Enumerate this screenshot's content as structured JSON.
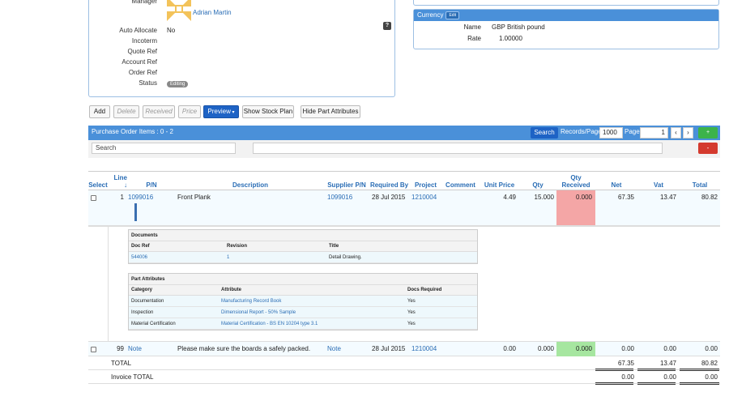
{
  "header": {
    "manager_label": "Manager",
    "manager_name": "Adrian Martin",
    "fields": [
      {
        "label": "Auto Allocate",
        "value": "No"
      },
      {
        "label": "Incoterm",
        "value": ""
      },
      {
        "label": "Quote Ref",
        "value": ""
      },
      {
        "label": "Account Ref",
        "value": ""
      },
      {
        "label": "Order Ref",
        "value": ""
      }
    ],
    "status_label": "Status",
    "status_value": "Editing",
    "help_icon": "?"
  },
  "currency": {
    "title": "Currency",
    "edit_label": "Edit",
    "name_label": "Name",
    "name_value": "GBP British pound",
    "rate_label": "Rate",
    "rate_value": "1.00000"
  },
  "toolbar": {
    "add": "Add",
    "delete": "Delete",
    "received": "Received",
    "price": "Price",
    "preview": "Preview",
    "show_stock_plan": "Show Stock Plan",
    "hide_part_attributes": "Hide Part Attributes"
  },
  "grid": {
    "title": "Purchase Order Items : 0 - 2",
    "search_button": "Search",
    "records_per_page_label": "Records/Page",
    "records_per_page": "1000",
    "page_label": "Page",
    "page": "1",
    "prev": "‹",
    "next": "›",
    "add_icon": "+",
    "delete_icon": "-",
    "search_placeholder": "Search"
  },
  "columns": {
    "select": "Select",
    "line": "Line",
    "line_sort": "↓",
    "pn": "P/N",
    "description": "Description",
    "supplier_pn": "Supplier P/N",
    "required_by": "Required By",
    "project": "Project",
    "comment": "Comment",
    "unit_price": "Unit Price",
    "qty": "Qty",
    "qty_received": "Qty Received",
    "net": "Net",
    "vat": "Vat",
    "total": "Total"
  },
  "rows": [
    {
      "line": "1",
      "pn": "1099016",
      "description": "Front Plank",
      "supplier_pn": "1099016",
      "required_by": "28 Jul 2015",
      "project": "1210004",
      "comment": "",
      "unit_price": "4.49",
      "qty": "15.000",
      "qty_received": "0.000",
      "net": "67.35",
      "vat": "13.47",
      "total": "80.82"
    },
    {
      "line": "99",
      "pn": "Note",
      "description": "Please make sure the boards a safely packed.",
      "supplier_pn": "Note",
      "required_by": "28 Jul 2015",
      "project": "1210004",
      "comment": "",
      "unit_price": "0.00",
      "qty": "0.000",
      "qty_received": "0.000",
      "net": "0.00",
      "vat": "0.00",
      "total": "0.00"
    }
  ],
  "documents": {
    "title": "Documents",
    "headers": [
      "Doc Ref",
      "Revision",
      "Title"
    ],
    "rows": [
      [
        "544006",
        "1",
        "Detail Drawing."
      ]
    ]
  },
  "part_attributes": {
    "title": "Part Attributes",
    "headers": [
      "Category",
      "Attribute",
      "Docs Required"
    ],
    "rows": [
      [
        "Documentation",
        "Manufacturing Record Book",
        "Yes"
      ],
      [
        "Inspection",
        "Dimensional Report - 50% Sample",
        "Yes"
      ],
      [
        "Material Certification",
        "Material Certification - BS EN 10204 type 3.1",
        "Yes"
      ]
    ]
  },
  "totals": {
    "total_label": "TOTAL",
    "total_net": "67.35",
    "total_vat": "13.47",
    "total_total": "80.82",
    "invoice_label": "Invoice TOTAL",
    "invoice_net": "0.00",
    "invoice_vat": "0.00",
    "invoice_total": "0.00"
  },
  "colors": {
    "accent": "#4a90d9",
    "primary_button": "#1e63c5",
    "qty_not_received": "#f4a6a6",
    "qty_received_ok": "#a6e6a0"
  }
}
